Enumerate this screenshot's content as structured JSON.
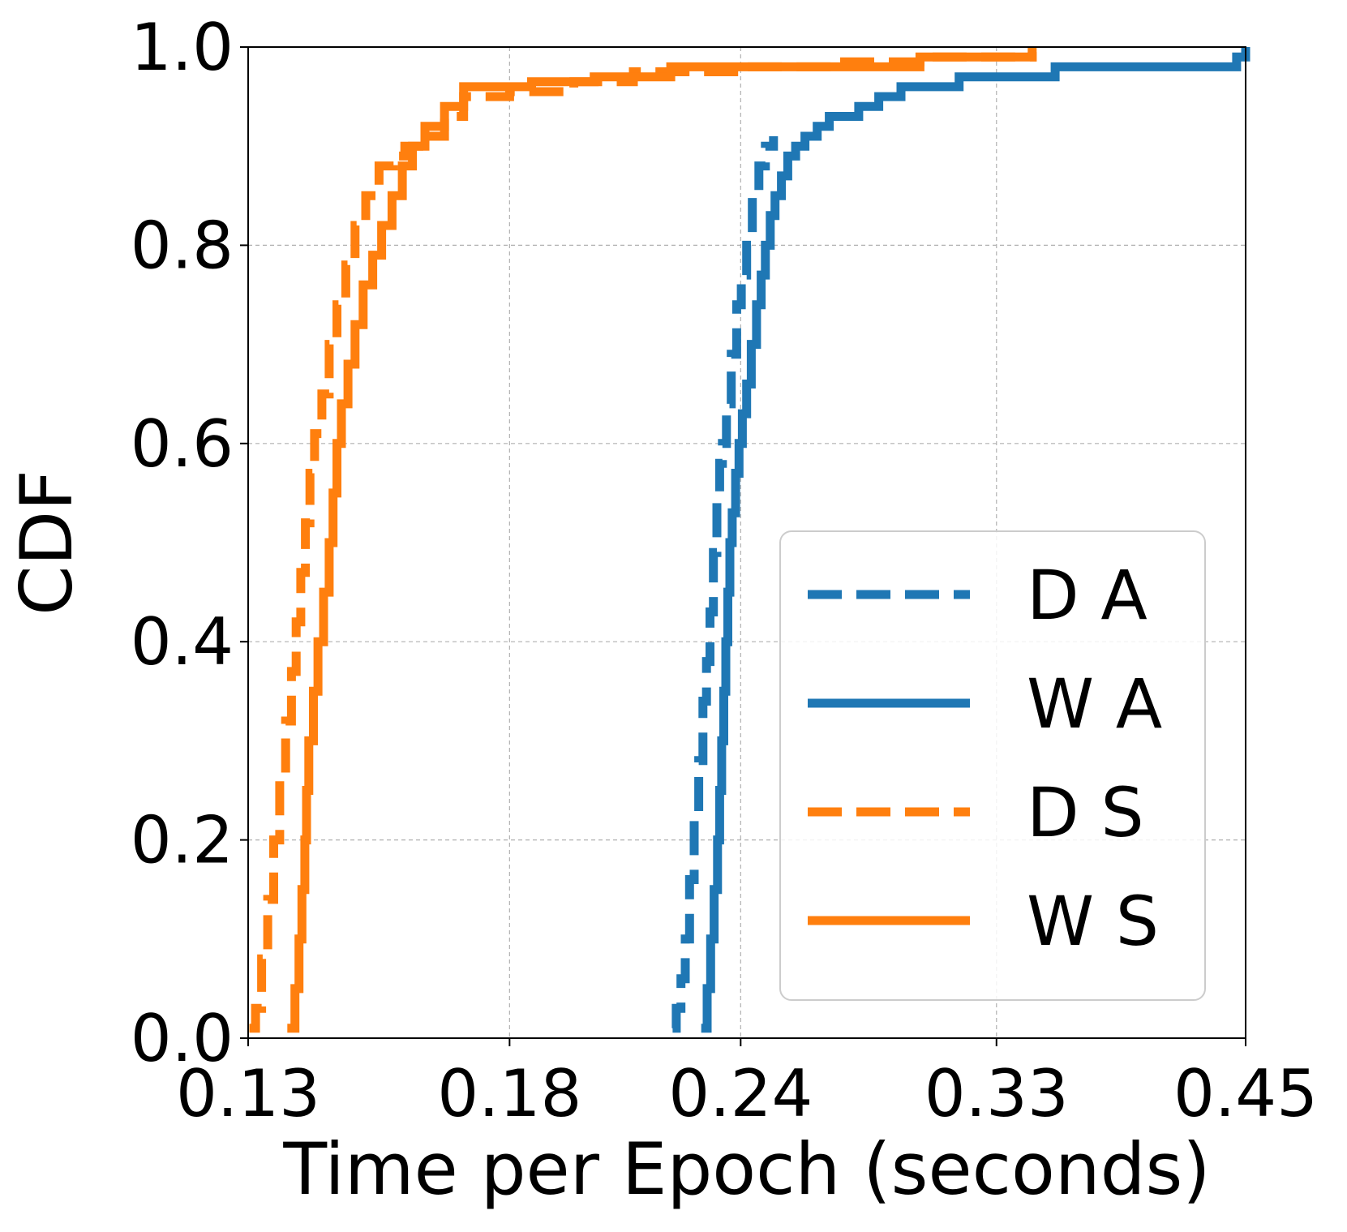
{
  "chart_data": {
    "type": "line",
    "subtype": "cdf",
    "title": "",
    "xlabel": "Time per Epoch (seconds)",
    "ylabel": "CDF",
    "x_scale": "log",
    "xlim": [
      0.13,
      0.45
    ],
    "ylim": [
      0.0,
      1.0
    ],
    "x_ticks": [
      0.13,
      0.18,
      0.24,
      0.33,
      0.45
    ],
    "x_tick_labels": [
      "0.13",
      "0.18",
      "0.24",
      "0.33",
      "0.45"
    ],
    "y_ticks": [
      0.0,
      0.2,
      0.4,
      0.6,
      0.8,
      1.0
    ],
    "y_tick_labels": [
      "0.0",
      "0.2",
      "0.4",
      "0.6",
      "0.8",
      "1.0"
    ],
    "grid": true,
    "legend_position": "lower-right",
    "series": [
      {
        "name": "D A",
        "color": "#1f77b4",
        "dash": "dashed",
        "points": [
          [
            0.2205,
            0.01
          ],
          [
            0.2215,
            0.03
          ],
          [
            0.2228,
            0.06
          ],
          [
            0.224,
            0.1
          ],
          [
            0.2252,
            0.16
          ],
          [
            0.2265,
            0.22
          ],
          [
            0.2278,
            0.28
          ],
          [
            0.229,
            0.34
          ],
          [
            0.23,
            0.38
          ],
          [
            0.231,
            0.43
          ],
          [
            0.232,
            0.49
          ],
          [
            0.233,
            0.54
          ],
          [
            0.2338,
            0.58
          ],
          [
            0.2346,
            0.6
          ],
          [
            0.2358,
            0.64
          ],
          [
            0.2372,
            0.69
          ],
          [
            0.2388,
            0.74
          ],
          [
            0.2402,
            0.77
          ],
          [
            0.2418,
            0.8
          ],
          [
            0.2435,
            0.85
          ],
          [
            0.2455,
            0.88
          ],
          [
            0.2475,
            0.9
          ],
          [
            0.25,
            0.91
          ]
        ]
      },
      {
        "name": "W A",
        "color": "#1f77b4",
        "dash": "solid",
        "points": [
          [
            0.2285,
            0.01
          ],
          [
            0.2302,
            0.05
          ],
          [
            0.2312,
            0.1
          ],
          [
            0.2322,
            0.15
          ],
          [
            0.2332,
            0.2
          ],
          [
            0.2338,
            0.25
          ],
          [
            0.2344,
            0.3
          ],
          [
            0.235,
            0.35
          ],
          [
            0.2356,
            0.4
          ],
          [
            0.2362,
            0.45
          ],
          [
            0.2368,
            0.5
          ],
          [
            0.2375,
            0.53
          ],
          [
            0.2385,
            0.57
          ],
          [
            0.2395,
            0.6
          ],
          [
            0.2405,
            0.63
          ],
          [
            0.2418,
            0.66
          ],
          [
            0.2432,
            0.7
          ],
          [
            0.2448,
            0.74
          ],
          [
            0.2462,
            0.77
          ],
          [
            0.2475,
            0.8
          ],
          [
            0.249,
            0.83
          ],
          [
            0.2505,
            0.85
          ],
          [
            0.2525,
            0.87
          ],
          [
            0.2545,
            0.89
          ],
          [
            0.257,
            0.9
          ],
          [
            0.26,
            0.91
          ],
          [
            0.264,
            0.92
          ],
          [
            0.268,
            0.93
          ],
          [
            0.278,
            0.94
          ],
          [
            0.285,
            0.95
          ],
          [
            0.293,
            0.96
          ],
          [
            0.315,
            0.97
          ],
          [
            0.355,
            0.98
          ],
          [
            0.445,
            0.99
          ],
          [
            0.45,
            1.0
          ]
        ]
      },
      {
        "name": "D S",
        "color": "#ff7f0e",
        "dash": "dashed",
        "points": [
          [
            0.1302,
            0.01
          ],
          [
            0.1312,
            0.03
          ],
          [
            0.1322,
            0.08
          ],
          [
            0.1332,
            0.14
          ],
          [
            0.1342,
            0.2
          ],
          [
            0.1352,
            0.26
          ],
          [
            0.1362,
            0.32
          ],
          [
            0.1372,
            0.37
          ],
          [
            0.138,
            0.42
          ],
          [
            0.1388,
            0.47
          ],
          [
            0.1396,
            0.52
          ],
          [
            0.1404,
            0.57
          ],
          [
            0.1412,
            0.61
          ],
          [
            0.1425,
            0.65
          ],
          [
            0.1438,
            0.7
          ],
          [
            0.1452,
            0.74
          ],
          [
            0.1468,
            0.78
          ],
          [
            0.1485,
            0.82
          ],
          [
            0.1505,
            0.85
          ],
          [
            0.153,
            0.88
          ],
          [
            0.1558,
            0.89
          ],
          [
            0.158,
            0.9
          ],
          [
            0.162,
            0.91
          ],
          [
            0.166,
            0.93
          ],
          [
            0.17,
            0.95
          ],
          [
            0.18,
            0.955
          ],
          [
            0.195,
            0.965
          ],
          [
            0.21,
            0.975
          ],
          [
            0.24,
            0.98
          ],
          [
            0.27,
            0.985
          ],
          [
            0.3,
            0.99
          ],
          [
            0.345,
            0.995
          ]
        ]
      },
      {
        "name": "W S",
        "color": "#ff7f0e",
        "dash": "solid",
        "points": [
          [
            0.1365,
            0.01
          ],
          [
            0.1378,
            0.05
          ],
          [
            0.1385,
            0.1
          ],
          [
            0.139,
            0.15
          ],
          [
            0.1395,
            0.2
          ],
          [
            0.1398,
            0.25
          ],
          [
            0.1402,
            0.3
          ],
          [
            0.141,
            0.35
          ],
          [
            0.1418,
            0.4
          ],
          [
            0.1428,
            0.45
          ],
          [
            0.1438,
            0.5
          ],
          [
            0.1445,
            0.55
          ],
          [
            0.1452,
            0.6
          ],
          [
            0.146,
            0.64
          ],
          [
            0.1472,
            0.68
          ],
          [
            0.1485,
            0.72
          ],
          [
            0.15,
            0.76
          ],
          [
            0.1518,
            0.79
          ],
          [
            0.1535,
            0.82
          ],
          [
            0.1555,
            0.85
          ],
          [
            0.1575,
            0.88
          ],
          [
            0.1595,
            0.9
          ],
          [
            0.162,
            0.92
          ],
          [
            0.166,
            0.94
          ],
          [
            0.17,
            0.96
          ],
          [
            0.185,
            0.965
          ],
          [
            0.2,
            0.97
          ],
          [
            0.22,
            0.98
          ],
          [
            0.3,
            0.99
          ],
          [
            0.345,
            1.0
          ]
        ]
      }
    ]
  }
}
